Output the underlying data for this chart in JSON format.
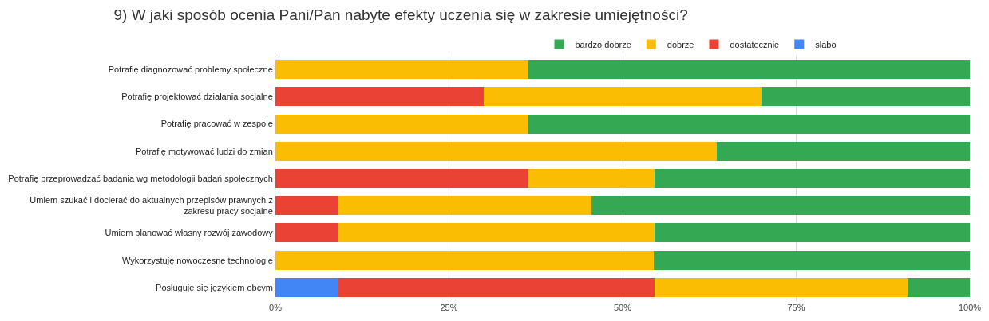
{
  "chart_data": {
    "type": "bar",
    "orientation": "horizontal",
    "stacked": true,
    "title": "9) W jaki sposób ocenia Pani/Pan nabyte efekty uczenia się w zakresie umiejętności?",
    "categories": [
      "Potrafię diagnozować problemy społeczne",
      "Potrafię projektować działania socjalne",
      "Potrafię pracować w zespole",
      "Potrafię motywować ludzi do zmian",
      "Potrafię przeprowadzać badania wg metodologii badań społecznych",
      "Umiem szukać i docierać do aktualnych przepisów prawnych z\nzakresu pracy socjalne",
      "Umiem planować własny rozwój zawodowy",
      "Wykorzystuję nowoczesne technologie",
      "Posługuję się językiem obcym"
    ],
    "series": [
      {
        "name": "słabo",
        "color": "#4285f4",
        "values": [
          0,
          0,
          0,
          0,
          0,
          0,
          0,
          0,
          9.1
        ]
      },
      {
        "name": "dostatecznie",
        "color": "#ea4335",
        "values": [
          0,
          30,
          0,
          0,
          36.4,
          9.1,
          9.1,
          0,
          45.5
        ]
      },
      {
        "name": "dobrze",
        "color": "#fbbc04",
        "values": [
          36.4,
          40,
          36.4,
          63.6,
          18.2,
          36.4,
          45.5,
          54.5,
          36.4
        ]
      },
      {
        "name": "bardzo dobrze",
        "color": "#34a853",
        "values": [
          63.6,
          30,
          63.6,
          36.4,
          45.4,
          54.5,
          45.4,
          45.5,
          9.0
        ]
      }
    ],
    "xlim": [
      0,
      100
    ],
    "xticks": [
      {
        "value": 0,
        "label": "0%"
      },
      {
        "value": 25,
        "label": "25%"
      },
      {
        "value": 50,
        "label": "50%"
      },
      {
        "value": 75,
        "label": "75%"
      },
      {
        "value": 100,
        "label": "100%"
      }
    ],
    "grid": "x",
    "legend": "top"
  }
}
